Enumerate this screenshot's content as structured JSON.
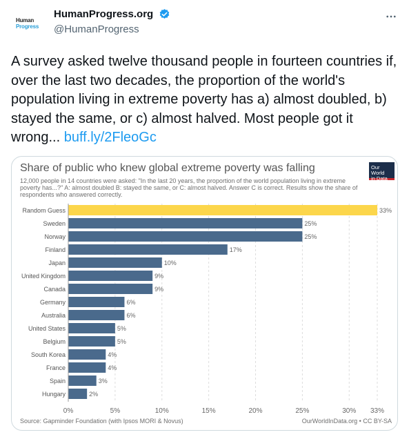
{
  "tweet": {
    "avatar": {
      "line1": "Human",
      "line2": "Progress"
    },
    "display_name": "HumanProgress.org",
    "handle": "@HumanProgress",
    "text": "A survey asked twelve thousand people in fourteen countries if, over the last two decades, the proportion of the world's population living in extreme poverty has a) almost doubled, b) stayed the same, or c) almost halved. Most people got it wrong... ",
    "link": "buff.ly/2FleoGc",
    "more_icon": "more-horizontal-icon",
    "verified_icon": "verified-badge-icon",
    "colors": {
      "verified": "#1d9bf0",
      "link": "#1d9bf0"
    }
  },
  "card": {
    "logo": {
      "line1": "Our World",
      "line2": "in Data"
    },
    "source": "Source: Gapminder Foundation (with Ipsos MORI & Novus)",
    "license": "OurWorldInData.org • CC BY-SA"
  },
  "chart_data": {
    "type": "bar",
    "orientation": "horizontal",
    "title": "Share of public who knew global extreme poverty was falling",
    "subtitle": "12,000 people in 14 countries were asked: \"In the last 20 years, the proportion of the world population living in extreme poverty has...?\" A: almost doubled B: stayed the same, or C: almost halved. Answer C is correct. Results show the share of respondents who answered correctly.",
    "categories": [
      "Random Guess",
      "Sweden",
      "Norway",
      "Finland",
      "Japan",
      "United Kingdom",
      "Canada",
      "Germany",
      "Australia",
      "United States",
      "Belgium",
      "South Korea",
      "France",
      "Spain",
      "Hungary"
    ],
    "values": [
      33,
      25,
      25,
      17,
      10,
      9,
      9,
      6,
      6,
      5,
      5,
      4,
      4,
      3,
      2
    ],
    "labels": [
      "33%",
      "25%",
      "25%",
      "17%",
      "10%",
      "9%",
      "9%",
      "6%",
      "6%",
      "5%",
      "5%",
      "4%",
      "4%",
      "3%",
      "2%"
    ],
    "highlight_index": 0,
    "xlim": [
      0,
      33
    ],
    "xticks": [
      0,
      5,
      10,
      15,
      20,
      25,
      30,
      33
    ],
    "xtick_labels": [
      "0%",
      "5%",
      "10%",
      "15%",
      "20%",
      "25%",
      "30%",
      "33%"
    ],
    "grid": true,
    "colors": {
      "bar": "#4a6a8c",
      "highlight": "#fcd64b",
      "grid": "#dddddd"
    }
  }
}
